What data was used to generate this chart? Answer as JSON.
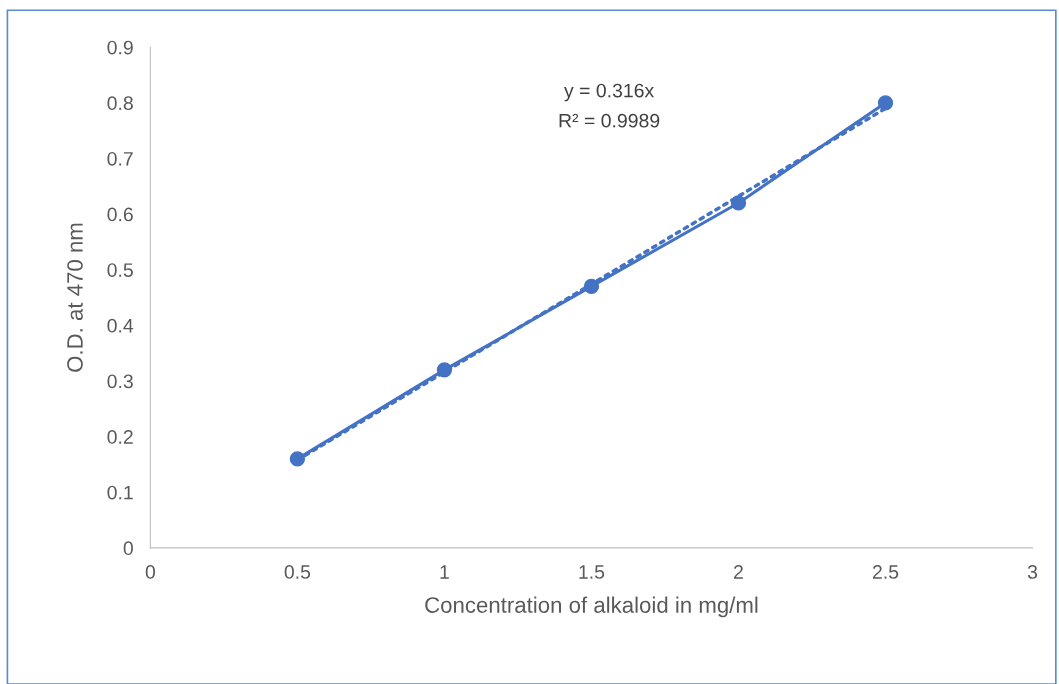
{
  "chart_data": {
    "type": "line",
    "xlabel": "Concentration of alkaloid in mg/ml",
    "ylabel": "O.D. at 470 nm",
    "x": [
      0.5,
      1,
      1.5,
      2,
      2.5
    ],
    "series": [
      {
        "color": "#4472c4",
        "values": [
          0.16,
          0.32,
          0.47,
          0.62,
          0.8
        ],
        "marker": "circle",
        "line_style": "solid"
      },
      {
        "color": "#4472c4",
        "x": [
          0.5,
          2.5
        ],
        "values": [
          0.158,
          0.79
        ],
        "marker": "none",
        "line_style": "dotted"
      }
    ],
    "xlim": [
      0,
      3
    ],
    "xticks": [
      0,
      0.5,
      1,
      1.5,
      2,
      2.5,
      3
    ],
    "ylim": [
      0,
      0.9
    ],
    "yticks": [
      0,
      0.1,
      0.2,
      0.3,
      0.4,
      0.5,
      0.6,
      0.7,
      0.8,
      0.9
    ],
    "annotations": [
      "y = 0.316x",
      "R² = 0.9989"
    ],
    "grid": false,
    "legend": false
  }
}
